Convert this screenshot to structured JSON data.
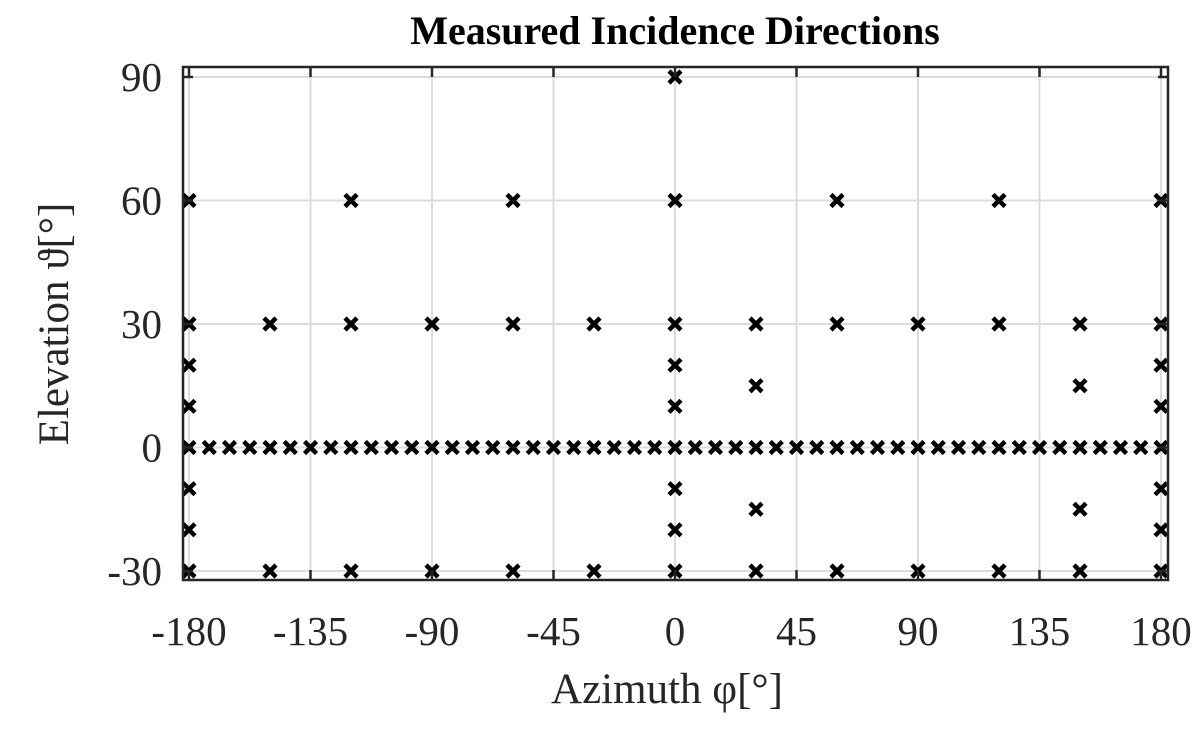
{
  "chart_data": {
    "type": "scatter",
    "title": "Measured Incidence Directions",
    "xlabel": "Azimuth φ[°]",
    "ylabel": "Elevation ϑ[°]",
    "xlim": [
      -180,
      180
    ],
    "ylim": [
      -30,
      90
    ],
    "xticks": [
      -180,
      -135,
      -90,
      -45,
      0,
      45,
      90,
      135,
      180
    ],
    "yticks": [
      -30,
      0,
      30,
      60,
      90
    ],
    "grid": true,
    "marker": "x",
    "marker_color": "#000000",
    "series": [
      {
        "points": [
          [
            0,
            90
          ],
          [
            -180,
            60
          ],
          [
            -120,
            60
          ],
          [
            -60,
            60
          ],
          [
            0,
            60
          ],
          [
            60,
            60
          ],
          [
            120,
            60
          ],
          [
            180,
            60
          ],
          [
            -180,
            30
          ],
          [
            -150,
            30
          ],
          [
            -120,
            30
          ],
          [
            -90,
            30
          ],
          [
            -60,
            30
          ],
          [
            -30,
            30
          ],
          [
            0,
            30
          ],
          [
            30,
            30
          ],
          [
            60,
            30
          ],
          [
            90,
            30
          ],
          [
            120,
            30
          ],
          [
            150,
            30
          ],
          [
            180,
            30
          ],
          [
            -180,
            20
          ],
          [
            0,
            20
          ],
          [
            180,
            20
          ],
          [
            30,
            15
          ],
          [
            150,
            15
          ],
          [
            -180,
            10
          ],
          [
            0,
            10
          ],
          [
            180,
            10
          ],
          [
            -180,
            0
          ],
          [
            -172.5,
            0
          ],
          [
            -165,
            0
          ],
          [
            -157.5,
            0
          ],
          [
            -150,
            0
          ],
          [
            -142.5,
            0
          ],
          [
            -135,
            0
          ],
          [
            -127.5,
            0
          ],
          [
            -120,
            0
          ],
          [
            -112.5,
            0
          ],
          [
            -105,
            0
          ],
          [
            -97.5,
            0
          ],
          [
            -90,
            0
          ],
          [
            -82.5,
            0
          ],
          [
            -75,
            0
          ],
          [
            -67.5,
            0
          ],
          [
            -60,
            0
          ],
          [
            -52.5,
            0
          ],
          [
            -45,
            0
          ],
          [
            -37.5,
            0
          ],
          [
            -30,
            0
          ],
          [
            -22.5,
            0
          ],
          [
            -15,
            0
          ],
          [
            -7.5,
            0
          ],
          [
            0,
            0
          ],
          [
            7.5,
            0
          ],
          [
            15,
            0
          ],
          [
            22.5,
            0
          ],
          [
            30,
            0
          ],
          [
            37.5,
            0
          ],
          [
            45,
            0
          ],
          [
            52.5,
            0
          ],
          [
            60,
            0
          ],
          [
            67.5,
            0
          ],
          [
            75,
            0
          ],
          [
            82.5,
            0
          ],
          [
            90,
            0
          ],
          [
            97.5,
            0
          ],
          [
            105,
            0
          ],
          [
            112.5,
            0
          ],
          [
            120,
            0
          ],
          [
            127.5,
            0
          ],
          [
            135,
            0
          ],
          [
            142.5,
            0
          ],
          [
            150,
            0
          ],
          [
            157.5,
            0
          ],
          [
            165,
            0
          ],
          [
            172.5,
            0
          ],
          [
            180,
            0
          ],
          [
            -180,
            -10
          ],
          [
            0,
            -10
          ],
          [
            180,
            -10
          ],
          [
            30,
            -15
          ],
          [
            150,
            -15
          ],
          [
            -180,
            -20
          ],
          [
            0,
            -20
          ],
          [
            180,
            -20
          ],
          [
            -180,
            -30
          ],
          [
            -150,
            -30
          ],
          [
            -120,
            -30
          ],
          [
            -90,
            -30
          ],
          [
            -60,
            -30
          ],
          [
            -30,
            -30
          ],
          [
            0,
            -30
          ],
          [
            30,
            -30
          ],
          [
            60,
            -30
          ],
          [
            90,
            -30
          ],
          [
            120,
            -30
          ],
          [
            150,
            -30
          ],
          [
            180,
            -30
          ]
        ]
      }
    ]
  }
}
